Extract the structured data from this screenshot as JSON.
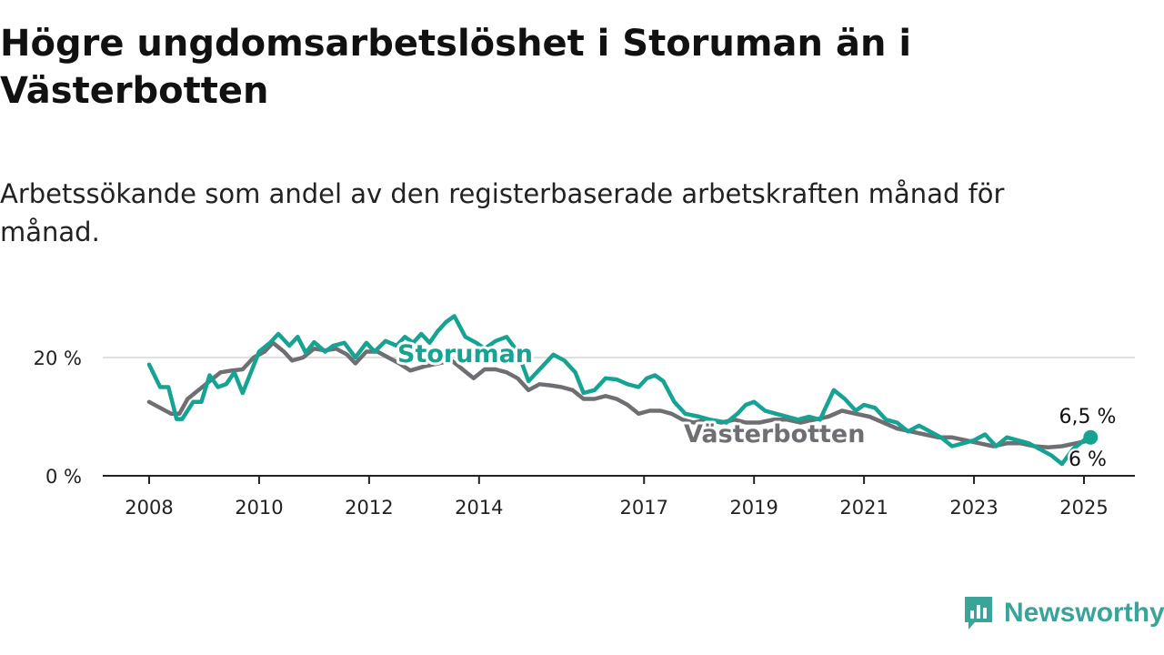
{
  "title": "Högre ungdomsarbetslöshet i Storuman än i Västerbotten",
  "subtitle": "Arbetssökande som andel av den registerbaserade arbetskraften månad för månad.",
  "brand": {
    "name": "Newsworthy",
    "icon": "newsworthy-logo-icon",
    "color": "#3aa39a"
  },
  "chart_data": {
    "type": "line",
    "x_ticks": [
      "2008",
      "2010",
      "2012",
      "2014",
      "2017",
      "2019",
      "2021",
      "2023",
      "2025"
    ],
    "y_ticks": [
      {
        "value": 0,
        "label": "0 %"
      },
      {
        "value": 20,
        "label": "20 %"
      }
    ],
    "ylim": [
      0,
      27
    ],
    "xlim": [
      2007.6,
      2026.3
    ],
    "grid": "horizontal",
    "series": [
      {
        "name": "Storuman",
        "color": "#16a393",
        "end_label": "6,5 %",
        "points": [
          [
            2008.0,
            18.8
          ],
          [
            2008.2,
            15.0
          ],
          [
            2008.35,
            15.0
          ],
          [
            2008.5,
            9.6
          ],
          [
            2008.6,
            9.6
          ],
          [
            2008.8,
            12.5
          ],
          [
            2008.95,
            12.5
          ],
          [
            2009.1,
            17.0
          ],
          [
            2009.25,
            15.0
          ],
          [
            2009.4,
            15.5
          ],
          [
            2009.55,
            17.5
          ],
          [
            2009.7,
            14.0
          ],
          [
            2009.85,
            17.5
          ],
          [
            2010.0,
            21.0
          ],
          [
            2010.2,
            22.5
          ],
          [
            2010.35,
            24.0
          ],
          [
            2010.55,
            22.0
          ],
          [
            2010.7,
            23.5
          ],
          [
            2010.85,
            20.8
          ],
          [
            2011.0,
            22.6
          ],
          [
            2011.2,
            21.0
          ],
          [
            2011.35,
            22.0
          ],
          [
            2011.55,
            22.5
          ],
          [
            2011.75,
            20.0
          ],
          [
            2011.95,
            22.5
          ],
          [
            2012.1,
            21.0
          ],
          [
            2012.3,
            22.8
          ],
          [
            2012.5,
            22.0
          ],
          [
            2012.65,
            23.5
          ],
          [
            2012.8,
            22.5
          ],
          [
            2012.95,
            24.0
          ],
          [
            2013.1,
            22.5
          ],
          [
            2013.25,
            24.5
          ],
          [
            2013.4,
            26.0
          ],
          [
            2013.55,
            27.0
          ],
          [
            2013.75,
            23.5
          ],
          [
            2013.95,
            22.5
          ],
          [
            2014.1,
            21.5
          ],
          [
            2014.3,
            22.8
          ],
          [
            2014.5,
            23.5
          ],
          [
            2014.7,
            21.0
          ],
          [
            2014.9,
            16.0
          ],
          [
            2015.15,
            18.5
          ],
          [
            2015.35,
            20.5
          ],
          [
            2015.55,
            19.5
          ],
          [
            2015.75,
            17.5
          ],
          [
            2015.9,
            14.0
          ],
          [
            2016.1,
            14.5
          ],
          [
            2016.3,
            16.5
          ],
          [
            2016.5,
            16.3
          ],
          [
            2016.7,
            15.5
          ],
          [
            2016.9,
            15.0
          ],
          [
            2017.05,
            16.5
          ],
          [
            2017.2,
            17.0
          ],
          [
            2017.35,
            16.0
          ],
          [
            2017.55,
            12.5
          ],
          [
            2017.75,
            10.5
          ],
          [
            2018.0,
            10.0
          ],
          [
            2018.2,
            9.5
          ],
          [
            2018.5,
            9.0
          ],
          [
            2018.7,
            10.5
          ],
          [
            2018.85,
            12.0
          ],
          [
            2019.0,
            12.5
          ],
          [
            2019.2,
            11.0
          ],
          [
            2019.4,
            10.5
          ],
          [
            2019.6,
            10.0
          ],
          [
            2019.8,
            9.5
          ],
          [
            2020.0,
            10.0
          ],
          [
            2020.2,
            9.5
          ],
          [
            2020.45,
            14.5
          ],
          [
            2020.65,
            13.0
          ],
          [
            2020.85,
            11.0
          ],
          [
            2021.0,
            12.0
          ],
          [
            2021.2,
            11.5
          ],
          [
            2021.4,
            9.5
          ],
          [
            2021.6,
            9.0
          ],
          [
            2021.8,
            7.5
          ],
          [
            2022.0,
            8.5
          ],
          [
            2022.2,
            7.5
          ],
          [
            2022.4,
            6.5
          ],
          [
            2022.6,
            5.0
          ],
          [
            2022.8,
            5.5
          ],
          [
            2023.0,
            6.0
          ],
          [
            2023.2,
            7.0
          ],
          [
            2023.4,
            5.0
          ],
          [
            2023.6,
            6.5
          ],
          [
            2023.8,
            6.0
          ],
          [
            2024.0,
            5.5
          ],
          [
            2024.2,
            4.5
          ],
          [
            2024.4,
            3.5
          ],
          [
            2024.6,
            2.0
          ],
          [
            2024.8,
            4.5
          ],
          [
            2025.0,
            6.0
          ],
          [
            2025.12,
            6.5
          ]
        ]
      },
      {
        "name": "Västerbotten",
        "color": "#6f6e73",
        "end_label": "6 %",
        "points": [
          [
            2008.0,
            12.5
          ],
          [
            2008.2,
            11.5
          ],
          [
            2008.4,
            10.5
          ],
          [
            2008.55,
            10.5
          ],
          [
            2008.7,
            13.0
          ],
          [
            2008.9,
            14.5
          ],
          [
            2009.1,
            16.0
          ],
          [
            2009.3,
            17.5
          ],
          [
            2009.5,
            17.8
          ],
          [
            2009.7,
            18.0
          ],
          [
            2009.9,
            20.0
          ],
          [
            2010.1,
            21.0
          ],
          [
            2010.25,
            22.5
          ],
          [
            2010.45,
            21.0
          ],
          [
            2010.6,
            19.5
          ],
          [
            2010.8,
            20.0
          ],
          [
            2011.0,
            21.5
          ],
          [
            2011.2,
            21.2
          ],
          [
            2011.4,
            21.5
          ],
          [
            2011.6,
            20.5
          ],
          [
            2011.75,
            19.0
          ],
          [
            2011.95,
            21.0
          ],
          [
            2012.15,
            21.0
          ],
          [
            2012.35,
            20.0
          ],
          [
            2012.55,
            19.0
          ],
          [
            2012.75,
            17.8
          ],
          [
            2013.0,
            18.5
          ],
          [
            2013.25,
            19.0
          ],
          [
            2013.5,
            19.5
          ],
          [
            2013.7,
            18.0
          ],
          [
            2013.9,
            16.5
          ],
          [
            2014.1,
            18.0
          ],
          [
            2014.3,
            18.0
          ],
          [
            2014.5,
            17.5
          ],
          [
            2014.7,
            16.5
          ],
          [
            2014.9,
            14.5
          ],
          [
            2015.1,
            15.5
          ],
          [
            2015.3,
            15.3
          ],
          [
            2015.5,
            15.0
          ],
          [
            2015.7,
            14.5
          ],
          [
            2015.9,
            13.0
          ],
          [
            2016.1,
            13.0
          ],
          [
            2016.3,
            13.5
          ],
          [
            2016.5,
            13.0
          ],
          [
            2016.7,
            12.0
          ],
          [
            2016.9,
            10.5
          ],
          [
            2017.1,
            11.0
          ],
          [
            2017.3,
            11.0
          ],
          [
            2017.5,
            10.5
          ],
          [
            2017.7,
            9.5
          ],
          [
            2017.9,
            9.0
          ],
          [
            2018.15,
            9.5
          ],
          [
            2018.4,
            9.0
          ],
          [
            2018.65,
            9.5
          ],
          [
            2018.85,
            9.0
          ],
          [
            2019.1,
            9.0
          ],
          [
            2019.35,
            9.5
          ],
          [
            2019.6,
            9.5
          ],
          [
            2019.85,
            9.0
          ],
          [
            2020.1,
            9.5
          ],
          [
            2020.35,
            10.0
          ],
          [
            2020.6,
            11.0
          ],
          [
            2020.85,
            10.5
          ],
          [
            2021.1,
            10.0
          ],
          [
            2021.35,
            9.0
          ],
          [
            2021.6,
            8.0
          ],
          [
            2021.85,
            7.5
          ],
          [
            2022.1,
            7.0
          ],
          [
            2022.35,
            6.5
          ],
          [
            2022.6,
            6.5
          ],
          [
            2022.85,
            6.0
          ],
          [
            2023.1,
            5.5
          ],
          [
            2023.35,
            5.0
          ],
          [
            2023.6,
            5.5
          ],
          [
            2023.85,
            5.5
          ],
          [
            2024.1,
            5.0
          ],
          [
            2024.35,
            4.8
          ],
          [
            2024.6,
            5.0
          ],
          [
            2024.85,
            5.5
          ],
          [
            2025.12,
            6.0
          ]
        ]
      }
    ]
  }
}
